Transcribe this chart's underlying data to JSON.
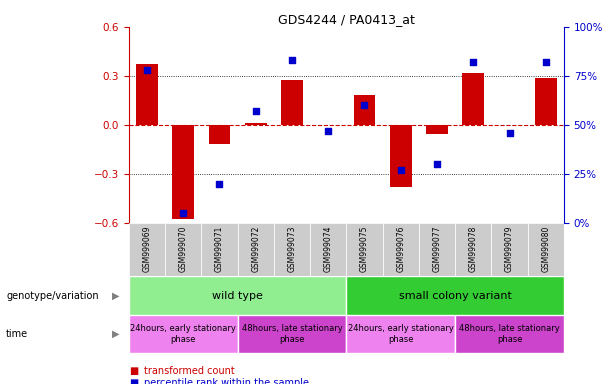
{
  "title": "GDS4244 / PA0413_at",
  "samples": [
    "GSM999069",
    "GSM999070",
    "GSM999071",
    "GSM999072",
    "GSM999073",
    "GSM999074",
    "GSM999075",
    "GSM999076",
    "GSM999077",
    "GSM999078",
    "GSM999079",
    "GSM999080"
  ],
  "bar_values": [
    0.37,
    -0.58,
    -0.12,
    0.01,
    0.275,
    0.0,
    0.18,
    -0.38,
    -0.055,
    0.32,
    0.0,
    0.285
  ],
  "dot_values": [
    78,
    5,
    20,
    57,
    83,
    47,
    60,
    27,
    30,
    82,
    46,
    82
  ],
  "bar_color": "#CC0000",
  "dot_color": "#0000CC",
  "zero_line_color": "#CC0000",
  "grid_color": "black",
  "ylim_left": [
    -0.6,
    0.6
  ],
  "ylim_right": [
    0,
    100
  ],
  "yticks_left": [
    -0.6,
    -0.3,
    0.0,
    0.3,
    0.6
  ],
  "yticks_right": [
    0,
    25,
    50,
    75,
    100
  ],
  "yticklabels_right": [
    "0%",
    "25%",
    "50%",
    "75%",
    "100%"
  ],
  "genotype_groups": [
    {
      "label": "wild type",
      "start": 0,
      "end": 5,
      "color": "#90EE90"
    },
    {
      "label": "small colony variant",
      "start": 6,
      "end": 11,
      "color": "#33CC33"
    }
  ],
  "time_groups": [
    {
      "label": "24hours, early stationary\nphase",
      "start": 0,
      "end": 2,
      "color": "#EE82EE"
    },
    {
      "label": "48hours, late stationary\nphase",
      "start": 3,
      "end": 5,
      "color": "#CC44CC"
    },
    {
      "label": "24hours, early stationary\nphase",
      "start": 6,
      "end": 8,
      "color": "#EE82EE"
    },
    {
      "label": "48hours, late stationary\nphase",
      "start": 9,
      "end": 11,
      "color": "#CC44CC"
    }
  ],
  "legend_items": [
    {
      "label": "transformed count",
      "color": "#CC0000"
    },
    {
      "label": "percentile rank within the sample",
      "color": "#0000CC"
    }
  ],
  "genotype_label": "genotype/variation",
  "time_label": "time",
  "sample_bg_color": "#CCCCCC"
}
